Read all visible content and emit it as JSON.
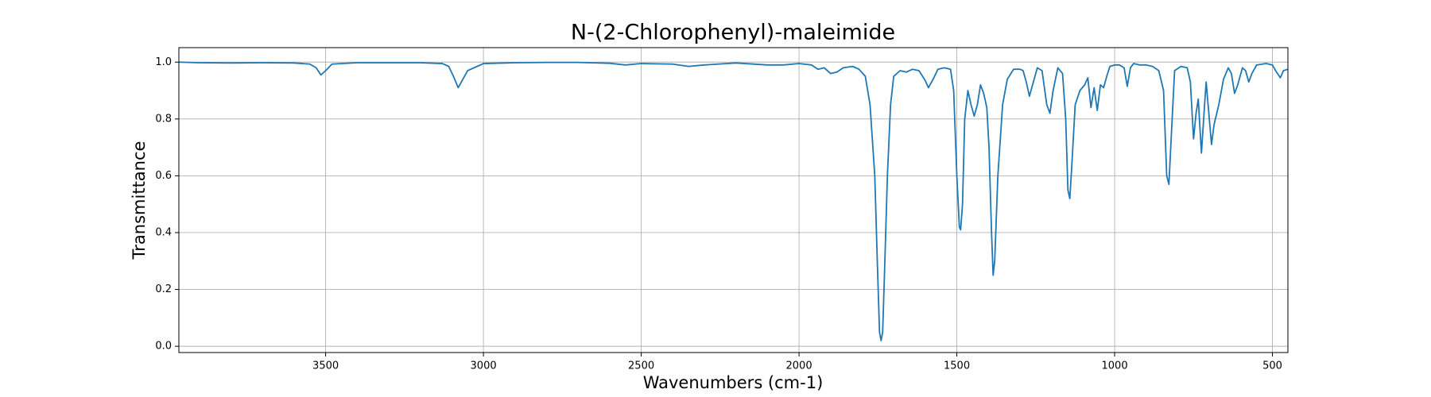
{
  "chart_data": {
    "type": "line",
    "title": "N-(2-Chlorophenyl)-maleimide",
    "x_label": "Wavenumbers (cm-1)",
    "y_label": "Transmittance",
    "color": "#1f77b4",
    "grid": true,
    "xlim": [
      3965,
      451
    ],
    "ylim": [
      -0.022,
      1.051
    ],
    "xticks": [
      3500,
      3000,
      2500,
      2000,
      1500,
      1000,
      500
    ],
    "yticks": [
      {
        "value": 0,
        "label": "0.0"
      },
      0.2,
      0.4,
      0.6,
      0.8,
      {
        "value": 1,
        "label": "1.0"
      }
    ],
    "x": [
      3965,
      3900,
      3800,
      3700,
      3600,
      3550,
      3530,
      3515,
      3500,
      3480,
      3400,
      3300,
      3200,
      3130,
      3110,
      3095,
      3080,
      3065,
      3050,
      3020,
      3000,
      2900,
      2800,
      2700,
      2600,
      2550,
      2500,
      2400,
      2350,
      2300,
      2200,
      2100,
      2050,
      2000,
      1960,
      1940,
      1920,
      1900,
      1880,
      1860,
      1830,
      1810,
      1790,
      1775,
      1760,
      1752,
      1745,
      1740,
      1735,
      1728,
      1720,
      1710,
      1700,
      1680,
      1660,
      1640,
      1620,
      1600,
      1590,
      1575,
      1560,
      1540,
      1520,
      1510,
      1500,
      1492,
      1488,
      1482,
      1475,
      1465,
      1455,
      1445,
      1435,
      1425,
      1415,
      1405,
      1398,
      1390,
      1385,
      1380,
      1370,
      1355,
      1340,
      1320,
      1300,
      1290,
      1280,
      1270,
      1260,
      1245,
      1230,
      1215,
      1205,
      1195,
      1180,
      1165,
      1155,
      1148,
      1142,
      1135,
      1125,
      1110,
      1095,
      1085,
      1075,
      1065,
      1055,
      1045,
      1035,
      1025,
      1015,
      1000,
      985,
      970,
      960,
      950,
      940,
      920,
      900,
      880,
      860,
      845,
      835,
      828,
      820,
      810,
      790,
      770,
      760,
      750,
      742,
      735,
      725,
      715,
      710,
      700,
      693,
      685,
      670,
      655,
      640,
      630,
      620,
      610,
      595,
      585,
      575,
      565,
      550,
      520,
      500,
      490,
      475,
      465,
      451
    ],
    "values": [
      1.0,
      0.998,
      0.997,
      0.998,
      0.997,
      0.993,
      0.98,
      0.955,
      0.97,
      0.993,
      0.998,
      0.998,
      0.998,
      0.995,
      0.985,
      0.95,
      0.91,
      0.94,
      0.97,
      0.985,
      0.995,
      0.998,
      0.999,
      0.999,
      0.996,
      0.99,
      0.995,
      0.993,
      0.985,
      0.99,
      0.997,
      0.99,
      0.99,
      0.995,
      0.99,
      0.975,
      0.98,
      0.96,
      0.965,
      0.98,
      0.985,
      0.975,
      0.95,
      0.85,
      0.6,
      0.3,
      0.05,
      0.02,
      0.05,
      0.3,
      0.6,
      0.85,
      0.95,
      0.97,
      0.965,
      0.975,
      0.97,
      0.935,
      0.91,
      0.94,
      0.975,
      0.98,
      0.975,
      0.9,
      0.6,
      0.42,
      0.41,
      0.5,
      0.8,
      0.9,
      0.85,
      0.81,
      0.85,
      0.92,
      0.89,
      0.84,
      0.7,
      0.4,
      0.25,
      0.3,
      0.6,
      0.85,
      0.94,
      0.975,
      0.975,
      0.97,
      0.93,
      0.88,
      0.92,
      0.98,
      0.97,
      0.85,
      0.82,
      0.9,
      0.98,
      0.96,
      0.8,
      0.55,
      0.52,
      0.65,
      0.85,
      0.9,
      0.92,
      0.945,
      0.84,
      0.91,
      0.83,
      0.92,
      0.91,
      0.95,
      0.985,
      0.99,
      0.99,
      0.98,
      0.915,
      0.98,
      0.995,
      0.99,
      0.99,
      0.985,
      0.97,
      0.9,
      0.6,
      0.57,
      0.75,
      0.97,
      0.985,
      0.98,
      0.93,
      0.73,
      0.82,
      0.87,
      0.68,
      0.85,
      0.93,
      0.8,
      0.71,
      0.78,
      0.85,
      0.94,
      0.98,
      0.96,
      0.89,
      0.92,
      0.98,
      0.97,
      0.93,
      0.96,
      0.99,
      0.995,
      0.99,
      0.97,
      0.945,
      0.97,
      0.975
    ]
  }
}
